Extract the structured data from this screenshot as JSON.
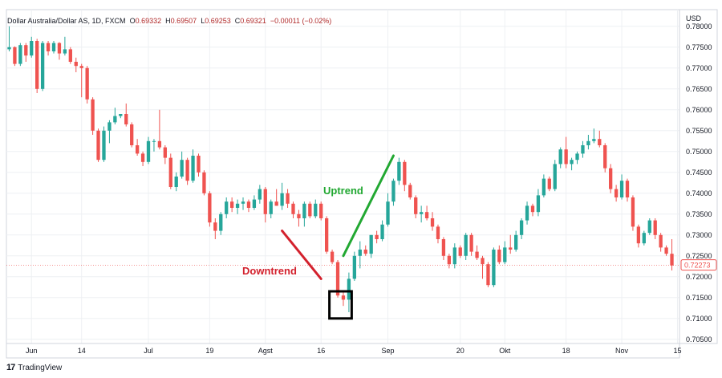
{
  "header": {
    "symbol": "Dollar Australia/Dollar AS, 1D, FXCM",
    "open_label": "O",
    "open_value": "0.69332",
    "high_label": "H",
    "high_value": "0.69507",
    "low_label": "L",
    "low_value": "0.69253",
    "close_label": "C",
    "close_value": "0.69321",
    "change_value": "−0.00011 (−0.02%)"
  },
  "footer": {
    "brand": "TradingView",
    "logo_text": "17"
  },
  "colors": {
    "up": "#26a69a",
    "down": "#ef5350",
    "grid": "#eef0f3",
    "uptrend": "#22a832",
    "downtrend": "#d3212d",
    "price_tag": "#ef5350"
  },
  "chart_data": {
    "type": "candlestick",
    "currency": "USD",
    "ylim": [
      0.704,
      0.784
    ],
    "y_ticks": [
      "0.78000",
      "0.77500",
      "0.77000",
      "0.76500",
      "0.76000",
      "0.75500",
      "0.75000",
      "0.74500",
      "0.74000",
      "0.73500",
      "0.73000",
      "0.72500",
      "0.72000",
      "0.71500",
      "0.71000",
      "0.70500"
    ],
    "x_ticks": [
      {
        "label": "Jun",
        "index": 4
      },
      {
        "label": "14",
        "index": 13
      },
      {
        "label": "Jul",
        "index": 25
      },
      {
        "label": "19",
        "index": 36
      },
      {
        "label": "Agst",
        "index": 46
      },
      {
        "label": "16",
        "index": 56
      },
      {
        "label": "Sep",
        "index": 68
      },
      {
        "label": "20",
        "index": 81
      },
      {
        "label": "Okt",
        "index": 89
      },
      {
        "label": "18",
        "index": 100
      },
      {
        "label": "Nov",
        "index": 110
      },
      {
        "label": "15",
        "index": 120
      }
    ],
    "last_price": "0.72273",
    "annotations": [
      {
        "text": "Uptrend",
        "type": "trendline",
        "from": [
          60,
          0.725
        ],
        "to": [
          69,
          0.749
        ]
      },
      {
        "text": "Downtrend",
        "type": "trendline",
        "from": [
          49,
          0.731
        ],
        "to": [
          56,
          0.7195
        ]
      },
      {
        "type": "box",
        "from_index": 58,
        "to_index": 61,
        "range": [
          0.71,
          0.7165
        ]
      }
    ],
    "candles": [
      [
        0.7745,
        0.78,
        0.774,
        0.775
      ],
      [
        0.775,
        0.7752,
        0.7705,
        0.771
      ],
      [
        0.771,
        0.776,
        0.7705,
        0.7755
      ],
      [
        0.7755,
        0.776,
        0.7715,
        0.773
      ],
      [
        0.773,
        0.7775,
        0.7725,
        0.7765
      ],
      [
        0.7765,
        0.777,
        0.764,
        0.765
      ],
      [
        0.765,
        0.7765,
        0.7645,
        0.776
      ],
      [
        0.776,
        0.7765,
        0.773,
        0.774
      ],
      [
        0.774,
        0.7765,
        0.7735,
        0.776
      ],
      [
        0.776,
        0.7762,
        0.772,
        0.7735
      ],
      [
        0.7735,
        0.7775,
        0.773,
        0.7745
      ],
      [
        0.7745,
        0.775,
        0.771,
        0.7715
      ],
      [
        0.7715,
        0.7725,
        0.769,
        0.7705
      ],
      [
        0.7705,
        0.771,
        0.763,
        0.77
      ],
      [
        0.77,
        0.7705,
        0.7615,
        0.7625
      ],
      [
        0.7625,
        0.763,
        0.754,
        0.755
      ],
      [
        0.755,
        0.7555,
        0.7475,
        0.748
      ],
      [
        0.748,
        0.756,
        0.7475,
        0.755
      ],
      [
        0.755,
        0.7575,
        0.752,
        0.757
      ],
      [
        0.757,
        0.7605,
        0.7565,
        0.7585
      ],
      [
        0.7585,
        0.759,
        0.758,
        0.759
      ],
      [
        0.759,
        0.7615,
        0.756,
        0.7565
      ],
      [
        0.7565,
        0.757,
        0.751,
        0.7515
      ],
      [
        0.7515,
        0.753,
        0.749,
        0.7495
      ],
      [
        0.7495,
        0.75,
        0.7465,
        0.7475
      ],
      [
        0.7475,
        0.7535,
        0.747,
        0.7525
      ],
      [
        0.7525,
        0.753,
        0.75,
        0.7525
      ],
      [
        0.7525,
        0.76,
        0.7505,
        0.751
      ],
      [
        0.751,
        0.7515,
        0.747,
        0.7485
      ],
      [
        0.7485,
        0.7495,
        0.741,
        0.7415
      ],
      [
        0.7415,
        0.745,
        0.7405,
        0.744
      ],
      [
        0.744,
        0.75,
        0.7435,
        0.748
      ],
      [
        0.748,
        0.7485,
        0.742,
        0.743
      ],
      [
        0.743,
        0.7505,
        0.7425,
        0.749
      ],
      [
        0.749,
        0.7495,
        0.744,
        0.745
      ],
      [
        0.745,
        0.7455,
        0.7395,
        0.74
      ],
      [
        0.74,
        0.7405,
        0.732,
        0.733
      ],
      [
        0.733,
        0.734,
        0.729,
        0.731
      ],
      [
        0.731,
        0.7355,
        0.73,
        0.735
      ],
      [
        0.735,
        0.739,
        0.734,
        0.738
      ],
      [
        0.738,
        0.739,
        0.7355,
        0.7365
      ],
      [
        0.7365,
        0.7385,
        0.735,
        0.7375
      ],
      [
        0.7375,
        0.739,
        0.736,
        0.738
      ],
      [
        0.738,
        0.7385,
        0.7355,
        0.7365
      ],
      [
        0.7365,
        0.7395,
        0.736,
        0.7385
      ],
      [
        0.7385,
        0.742,
        0.7375,
        0.741
      ],
      [
        0.741,
        0.7415,
        0.733,
        0.735
      ],
      [
        0.735,
        0.7385,
        0.734,
        0.738
      ],
      [
        0.738,
        0.741,
        0.737,
        0.737
      ],
      [
        0.737,
        0.7425,
        0.736,
        0.74
      ],
      [
        0.74,
        0.741,
        0.7365,
        0.7375
      ],
      [
        0.7375,
        0.738,
        0.734,
        0.735
      ],
      [
        0.735,
        0.736,
        0.732,
        0.734
      ],
      [
        0.734,
        0.738,
        0.732,
        0.7375
      ],
      [
        0.7375,
        0.738,
        0.734,
        0.7345
      ],
      [
        0.7345,
        0.7385,
        0.734,
        0.7375
      ],
      [
        0.7375,
        0.738,
        0.7335,
        0.734
      ],
      [
        0.734,
        0.7345,
        0.7255,
        0.726
      ],
      [
        0.726,
        0.7265,
        0.723,
        0.7235
      ],
      [
        0.7235,
        0.724,
        0.715,
        0.7155
      ],
      [
        0.7155,
        0.7165,
        0.713,
        0.7145
      ],
      [
        0.7145,
        0.721,
        0.7115,
        0.7195
      ],
      [
        0.7195,
        0.726,
        0.719,
        0.725
      ],
      [
        0.725,
        0.7285,
        0.722,
        0.7265
      ],
      [
        0.7265,
        0.7275,
        0.725,
        0.7255
      ],
      [
        0.7255,
        0.73,
        0.7245,
        0.73
      ],
      [
        0.73,
        0.731,
        0.728,
        0.729
      ],
      [
        0.729,
        0.7335,
        0.7285,
        0.7325
      ],
      [
        0.7325,
        0.74,
        0.732,
        0.738
      ],
      [
        0.738,
        0.7435,
        0.737,
        0.743
      ],
      [
        0.743,
        0.7485,
        0.742,
        0.7475
      ],
      [
        0.7475,
        0.748,
        0.7405,
        0.742
      ],
      [
        0.742,
        0.7425,
        0.7385,
        0.739
      ],
      [
        0.739,
        0.7395,
        0.734,
        0.735
      ],
      [
        0.735,
        0.737,
        0.733,
        0.7355
      ],
      [
        0.7355,
        0.737,
        0.7335,
        0.734
      ],
      [
        0.734,
        0.7355,
        0.731,
        0.732
      ],
      [
        0.732,
        0.7325,
        0.728,
        0.729
      ],
      [
        0.729,
        0.7295,
        0.724,
        0.725
      ],
      [
        0.725,
        0.7255,
        0.722,
        0.723
      ],
      [
        0.723,
        0.728,
        0.722,
        0.727
      ],
      [
        0.727,
        0.7275,
        0.7245,
        0.725
      ],
      [
        0.725,
        0.7305,
        0.724,
        0.73
      ],
      [
        0.73,
        0.7305,
        0.725,
        0.726
      ],
      [
        0.726,
        0.7275,
        0.724,
        0.7245
      ],
      [
        0.7245,
        0.725,
        0.7195,
        0.723
      ],
      [
        0.723,
        0.7235,
        0.7175,
        0.718
      ],
      [
        0.718,
        0.727,
        0.7175,
        0.7265
      ],
      [
        0.7265,
        0.7275,
        0.723,
        0.7235
      ],
      [
        0.7235,
        0.7285,
        0.723,
        0.727
      ],
      [
        0.727,
        0.73,
        0.7255,
        0.7265
      ],
      [
        0.7265,
        0.731,
        0.726,
        0.73
      ],
      [
        0.73,
        0.734,
        0.729,
        0.7335
      ],
      [
        0.7335,
        0.738,
        0.7325,
        0.737
      ],
      [
        0.737,
        0.7375,
        0.7345,
        0.7355
      ],
      [
        0.7355,
        0.741,
        0.7345,
        0.7395
      ],
      [
        0.7395,
        0.7445,
        0.739,
        0.7435
      ],
      [
        0.7435,
        0.744,
        0.7405,
        0.741
      ],
      [
        0.741,
        0.748,
        0.7405,
        0.747
      ],
      [
        0.747,
        0.751,
        0.746,
        0.7505
      ],
      [
        0.7505,
        0.7535,
        0.746,
        0.747
      ],
      [
        0.747,
        0.7485,
        0.7455,
        0.748
      ],
      [
        0.748,
        0.75,
        0.747,
        0.7495
      ],
      [
        0.7495,
        0.7525,
        0.7485,
        0.7515
      ],
      [
        0.7515,
        0.754,
        0.7505,
        0.7525
      ],
      [
        0.7525,
        0.7555,
        0.752,
        0.753
      ],
      [
        0.753,
        0.755,
        0.751,
        0.7515
      ],
      [
        0.7515,
        0.752,
        0.745,
        0.746
      ],
      [
        0.746,
        0.747,
        0.74,
        0.741
      ],
      [
        0.741,
        0.742,
        0.738,
        0.739
      ],
      [
        0.739,
        0.7445,
        0.7385,
        0.743
      ],
      [
        0.743,
        0.7435,
        0.738,
        0.739
      ],
      [
        0.739,
        0.7395,
        0.731,
        0.732
      ],
      [
        0.732,
        0.7325,
        0.727,
        0.728
      ],
      [
        0.728,
        0.731,
        0.7275,
        0.7305
      ],
      [
        0.7305,
        0.734,
        0.73,
        0.7335
      ],
      [
        0.7335,
        0.734,
        0.729,
        0.73
      ],
      [
        0.73,
        0.7305,
        0.726,
        0.727
      ],
      [
        0.727,
        0.7275,
        0.725,
        0.7255
      ],
      [
        0.7255,
        0.729,
        0.7215,
        0.7227
      ]
    ]
  }
}
